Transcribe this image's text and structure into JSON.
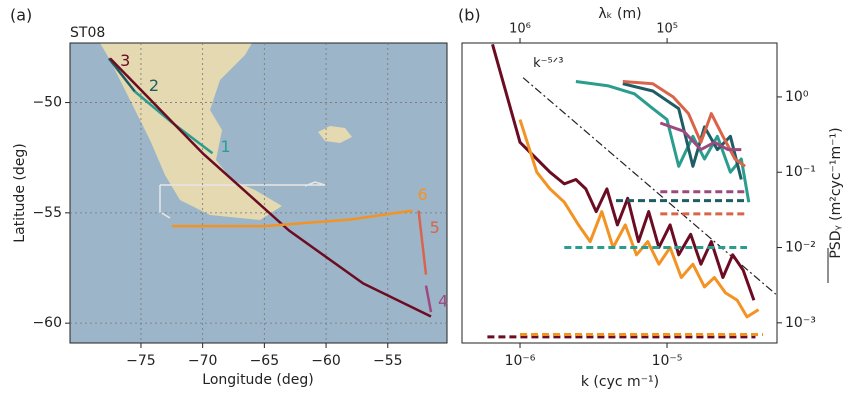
{
  "chart_data": [
    {
      "type": "line",
      "panel_label": "(a)",
      "title": "ST08",
      "xlabel": "Longitude (deg)",
      "ylabel": "Latitude (deg)",
      "xlim": [
        -80.75,
        -50.2
      ],
      "ylim": [
        -60.9,
        -47.3
      ],
      "xticks": [
        {
          "value": -75,
          "label": "−75"
        },
        {
          "value": -70,
          "label": "−70"
        },
        {
          "value": -65,
          "label": "−65"
        },
        {
          "value": -60,
          "label": "−60"
        },
        {
          "value": -55,
          "label": "−55"
        }
      ],
      "yticks": [
        {
          "value": -60,
          "label": "−60"
        },
        {
          "value": -55,
          "label": "−55"
        },
        {
          "value": -50,
          "label": "−50"
        }
      ],
      "grid": true,
      "series": [
        {
          "name": "1",
          "color": "#2a9d8f",
          "x": [
            -75.5,
            -72.5,
            -69.2
          ],
          "values": [
            -49.5,
            -50.9,
            -52.3
          ]
        },
        {
          "name": "2",
          "color": "#1e5c66",
          "x": [
            -77.6,
            -75.5
          ],
          "values": [
            -48.0,
            -49.5
          ]
        },
        {
          "name": "3",
          "color": "#6b0c22",
          "x": [
            -77.5,
            -70,
            -63,
            -57,
            -51.5
          ],
          "values": [
            -48.0,
            -52.3,
            -55.8,
            -58.2,
            -59.7
          ]
        },
        {
          "name": "4",
          "color": "#9c4a7e",
          "x": [
            -51.9,
            -51.5
          ],
          "values": [
            -58.3,
            -59.5
          ]
        },
        {
          "name": "5",
          "color": "#d9644a",
          "x": [
            -52.5,
            -51.9
          ],
          "values": [
            -54.9,
            -57.8
          ]
        },
        {
          "name": "6",
          "color": "#f39323",
          "x": [
            -72.5,
            -65,
            -58,
            -53
          ],
          "values": [
            -55.6,
            -55.6,
            -55.3,
            -54.9
          ]
        }
      ]
    },
    {
      "type": "line",
      "panel_label": "(b)",
      "xlabel": "k (cyc m⁻¹)",
      "ylabel": "PSDᵧ (m²cyc⁻¹m⁻¹)",
      "x2label": "λₖ (m)",
      "xscale": "log",
      "yscale": "log",
      "xlim": [
        4.03e-07,
        5.6e-05
      ],
      "ylim": [
        0.00054,
        5.2
      ],
      "x2lim": [
        2480000,
        17900
      ],
      "xticks": [
        {
          "value": 1e-06,
          "label": "10⁻⁶"
        },
        {
          "value": 1e-05,
          "label": "10⁻⁵"
        }
      ],
      "x2ticks": [
        {
          "value": 1000000,
          "label": "10⁶"
        },
        {
          "value": 100000,
          "label": "10⁵"
        }
      ],
      "yticks": [
        {
          "value": 0.001,
          "label": "10⁻³"
        },
        {
          "value": 0.01,
          "label": "10⁻²"
        },
        {
          "value": 0.1,
          "label": "10⁻¹"
        },
        {
          "value": 1,
          "label": "10⁰"
        }
      ],
      "series": [
        {
          "name": "k⁻⁵ᐟ³",
          "color": "#222222",
          "style": "dashdot",
          "x": [
            1.05e-06,
            5.5e-05
          ],
          "values": [
            1.8,
            0.0024
          ]
        },
        {
          "color": "#6b0c22",
          "style": "solid",
          "x": [
            6.5e-07,
            1e-06,
            1.3e-06,
            1.6e-06,
            2e-06,
            2.4e-06,
            2.8e-06,
            3.3e-06,
            3.9e-06,
            4.6e-06,
            5.4e-06,
            6.4e-06,
            7.5e-06,
            8.8e-06,
            1.05e-05,
            1.2e-05,
            1.45e-05,
            1.7e-05,
            2e-05,
            2.4e-05,
            2.8e-05,
            3.3e-05,
            3.9e-05
          ],
          "values": [
            5,
            0.25,
            0.15,
            0.1,
            0.07,
            0.08,
            0.06,
            0.03,
            0.06,
            0.02,
            0.045,
            0.012,
            0.03,
            0.01,
            0.02,
            0.008,
            0.015,
            0.006,
            0.012,
            0.004,
            0.008,
            0.005,
            0.002
          ]
        },
        {
          "color": "#f39323",
          "style": "solid",
          "x": [
            1e-06,
            1.3e-06,
            1.6e-06,
            2e-06,
            2.5e-06,
            3e-06,
            3.6e-06,
            4.3e-06,
            5.2e-06,
            6.2e-06,
            7.4e-06,
            8.8e-06,
            1.05e-05,
            1.25e-05,
            1.5e-05,
            1.8e-05,
            2.1e-05,
            2.5e-05,
            3e-05,
            3.5e-05,
            4.2e-05
          ],
          "values": [
            0.5,
            0.1,
            0.06,
            0.04,
            0.02,
            0.012,
            0.03,
            0.01,
            0.02,
            0.008,
            0.012,
            0.006,
            0.01,
            0.004,
            0.006,
            0.003,
            0.004,
            0.0025,
            0.002,
            0.0012,
            0.0015
          ]
        },
        {
          "color": "#2a9d8f",
          "style": "solid",
          "x": [
            2.4e-06,
            4e-06,
            6e-06,
            8e-06,
            1e-05,
            1.2e-05,
            1.5e-05,
            1.8e-05,
            2.2e-05,
            2.7e-05,
            3.2e-05,
            3.6e-05
          ],
          "values": [
            1.6,
            1.4,
            1.1,
            0.7,
            0.5,
            0.12,
            0.3,
            0.15,
            0.3,
            0.1,
            0.15,
            0.04
          ]
        },
        {
          "color": "#1e5c66",
          "style": "solid",
          "x": [
            5e-06,
            8e-06,
            1.2e-05,
            1.5e-05,
            1.8e-05,
            2.2e-05,
            2.7e-05,
            3.2e-05
          ],
          "values": [
            1.5,
            1.2,
            0.7,
            0.12,
            0.4,
            0.2,
            0.3,
            0.08
          ]
        },
        {
          "color": "#d9644a",
          "style": "solid",
          "x": [
            5e-06,
            8e-06,
            1.1e-05,
            1.4e-05,
            1.7e-05,
            2e-05,
            2.4e-05,
            2.9e-05,
            3.4e-05
          ],
          "values": [
            1.6,
            1.5,
            1.0,
            0.6,
            0.25,
            0.6,
            0.3,
            0.15,
            0.12
          ]
        },
        {
          "color": "#9c4a7e",
          "style": "solid",
          "x": [
            9e-06,
            1.3e-05,
            1.7e-05,
            2.1e-05,
            2.6e-05,
            3.2e-05
          ],
          "values": [
            0.45,
            0.35,
            0.2,
            0.25,
            0.2,
            0.2
          ]
        },
        {
          "color": "#9c4a7e",
          "style": "dashed",
          "x": [
            9e-06,
            3.5e-05
          ],
          "values": [
            0.055,
            0.055
          ]
        },
        {
          "color": "#1e5c66",
          "style": "dashed",
          "x": [
            4.5e-06,
            3.5e-05
          ],
          "values": [
            0.042,
            0.042
          ]
        },
        {
          "color": "#d9644a",
          "style": "dashed",
          "x": [
            9e-06,
            3.5e-05
          ],
          "values": [
            0.028,
            0.028
          ]
        },
        {
          "color": "#2a9d8f",
          "style": "dashed",
          "x": [
            2e-06,
            3.5e-05
          ],
          "values": [
            0.01,
            0.01
          ]
        },
        {
          "color": "#6b0c22",
          "style": "dashed",
          "x": [
            6e-07,
            4e-05
          ],
          "values": [
            0.00065,
            0.00065
          ]
        },
        {
          "color": "#f39323",
          "style": "dashed",
          "x": [
            1e-06,
            4.5e-05
          ],
          "values": [
            0.0007,
            0.0007
          ]
        }
      ]
    }
  ]
}
